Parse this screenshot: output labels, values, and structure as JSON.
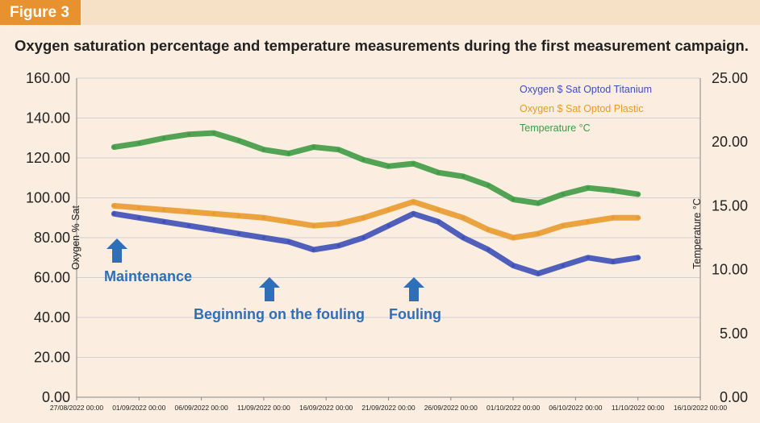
{
  "figure_label": "Figure 3",
  "chart_data": {
    "type": "line",
    "title": "Oxygen saturation percentage and temperature measurements during the first measurement campaign.",
    "ylabel": "Oxygen % Sat",
    "ylabel_right": "Temperature °C",
    "ylim": [
      0,
      160
    ],
    "ylim_right": [
      0,
      25
    ],
    "yticks_left": [
      "0.00",
      "20.00",
      "40.00",
      "60.00",
      "80.00",
      "100.00",
      "120.00",
      "140.00",
      "160.00"
    ],
    "yticks_right": [
      "0.00",
      "5.00",
      "10.00",
      "15.00",
      "20.00",
      "25.00"
    ],
    "xticks": [
      "27/08/2022 00:00",
      "01/09/2022 00:00",
      "06/09/2022 00:00",
      "11/09/2022 00:00",
      "16/09/2022 00:00",
      "21/09/2022 00:00",
      "26/09/2022 00:00",
      "01/10/2022 00:00",
      "06/10/2022 00:00",
      "11/10/2022 00:00",
      "16/10/2022 00:00"
    ],
    "legend_position": "top-right",
    "series": [
      {
        "name": "Oxygen $ Sat Optod Titanium",
        "color": "#3d4fb8",
        "axis": "left",
        "x": [
          "2022-08-30",
          "2022-09-01",
          "2022-09-03",
          "2022-09-05",
          "2022-09-07",
          "2022-09-09",
          "2022-09-11",
          "2022-09-13",
          "2022-09-15",
          "2022-09-17",
          "2022-09-19",
          "2022-09-21",
          "2022-09-23",
          "2022-09-25",
          "2022-09-27",
          "2022-09-29",
          "2022-10-01",
          "2022-10-03",
          "2022-10-05",
          "2022-10-07",
          "2022-10-09",
          "2022-10-11"
        ],
        "y": [
          92,
          90,
          88,
          86,
          84,
          82,
          80,
          78,
          74,
          76,
          80,
          86,
          92,
          88,
          80,
          74,
          66,
          62,
          66,
          70,
          68,
          70
        ]
      },
      {
        "name": "Oxygen $ Sat Optod Plastic",
        "color": "#e89a2c",
        "axis": "left",
        "x": [
          "2022-08-30",
          "2022-09-01",
          "2022-09-03",
          "2022-09-05",
          "2022-09-07",
          "2022-09-09",
          "2022-09-11",
          "2022-09-13",
          "2022-09-15",
          "2022-09-17",
          "2022-09-19",
          "2022-09-21",
          "2022-09-23",
          "2022-09-25",
          "2022-09-27",
          "2022-09-29",
          "2022-10-01",
          "2022-10-03",
          "2022-10-05",
          "2022-10-07",
          "2022-10-09",
          "2022-10-11"
        ],
        "y": [
          96,
          95,
          94,
          93,
          92,
          91,
          90,
          88,
          86,
          87,
          90,
          94,
          98,
          94,
          90,
          84,
          80,
          82,
          86,
          88,
          90,
          90
        ]
      },
      {
        "name": "Temperature °C",
        "color": "#3f9a45",
        "axis": "right",
        "x": [
          "2022-08-30",
          "2022-09-01",
          "2022-09-03",
          "2022-09-05",
          "2022-09-07",
          "2022-09-09",
          "2022-09-11",
          "2022-09-13",
          "2022-09-15",
          "2022-09-17",
          "2022-09-19",
          "2022-09-21",
          "2022-09-23",
          "2022-09-25",
          "2022-09-27",
          "2022-09-29",
          "2022-10-01",
          "2022-10-03",
          "2022-10-05",
          "2022-10-07",
          "2022-10-09",
          "2022-10-11"
        ],
        "y": [
          19.6,
          19.9,
          20.3,
          20.6,
          20.7,
          20.1,
          19.4,
          19.1,
          19.6,
          19.4,
          18.6,
          18.1,
          18.3,
          17.6,
          17.3,
          16.6,
          15.5,
          15.2,
          15.9,
          16.4,
          16.2,
          15.9
        ]
      }
    ],
    "annotations": [
      {
        "text": "Maintenance",
        "x": "2022-08-31",
        "y": 74
      },
      {
        "text": "Beginning on the fouling",
        "x": "2022-09-11",
        "y": 56
      },
      {
        "text": "Fouling",
        "x": "2022-09-23",
        "y": 56
      }
    ],
    "grid": {
      "horizontal": true,
      "vertical": false
    }
  }
}
